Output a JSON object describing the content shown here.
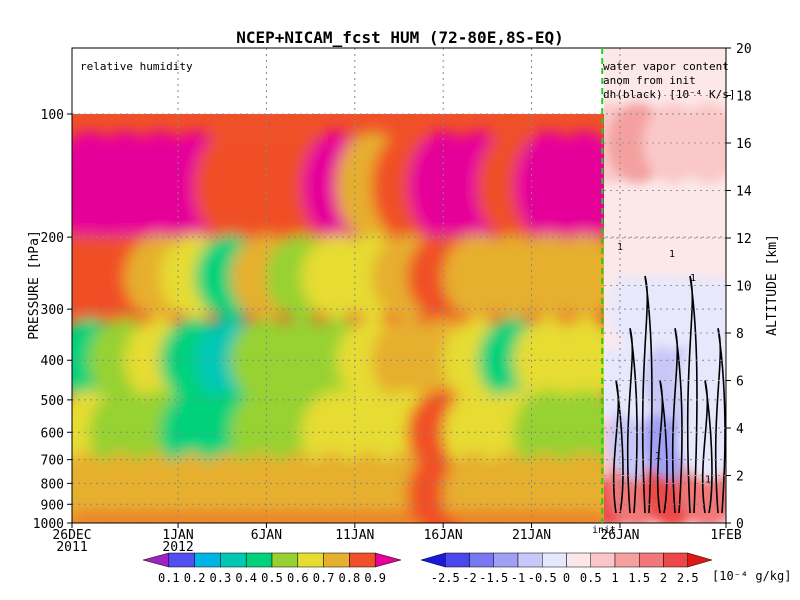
{
  "chart_data": [
    {
      "type": "heatmap",
      "title": "NCEP+NICAM_fcst HUM (72-80E,8S-EQ)",
      "panel_label": "relative humidity",
      "ylabel": "PRESSURE [hPa]",
      "ylabel_right": "ALTITUDE [km]",
      "y_scale": "log-pressure",
      "ylim": [
        1000,
        100
      ],
      "yticks": [
        100,
        200,
        300,
        400,
        500,
        600,
        700,
        800,
        900,
        1000
      ],
      "ylim_right": [
        0,
        20
      ],
      "yticks_right": [
        0,
        2,
        4,
        6,
        8,
        10,
        12,
        14,
        16,
        18,
        20
      ],
      "xlim": [
        "2011-12-26",
        "2012-02-01"
      ],
      "xticks": [
        {
          "date": "2011-12-26",
          "label": "26DEC"
        },
        {
          "date": "2012-01-01",
          "label": "1JAN"
        },
        {
          "date": "2012-01-06",
          "label": "6JAN"
        },
        {
          "date": "2012-01-11",
          "label": "11JAN"
        },
        {
          "date": "2012-01-16",
          "label": "16JAN"
        },
        {
          "date": "2012-01-21",
          "label": "21JAN"
        },
        {
          "date": "2012-01-26",
          "label": "26JAN"
        },
        {
          "date": "2012-02-01",
          "label": "1FEB"
        }
      ],
      "year_labels": [
        "2011",
        "2012"
      ],
      "init_marker": {
        "date": "2012-01-25",
        "label": "init"
      },
      "grid": true,
      "levels": [
        0.1,
        0.2,
        0.3,
        0.4,
        0.5,
        0.6,
        0.7,
        0.8,
        0.9
      ],
      "colors": [
        "#a020c0",
        "#5050f0",
        "#00b4e6",
        "#00c8b4",
        "#00d27c",
        "#96d232",
        "#e6dc32",
        "#e6af2d",
        "#f05028",
        "#e6009a"
      ],
      "colorbar_labels": [
        "0.1",
        "0.2",
        "0.3",
        "0.4",
        "0.5",
        "0.6",
        "0.7",
        "0.8",
        "0.9"
      ],
      "approx_series": {
        "pressure_levels": [
          150,
          250,
          400,
          600,
          850
        ],
        "points": [
          {
            "date": "2011-12-27",
            "rh": [
              0.9,
              0.85,
              0.45,
              0.6,
              0.75
            ]
          },
          {
            "date": "2011-12-29",
            "rh": [
              0.9,
              0.8,
              0.55,
              0.55,
              0.7
            ]
          },
          {
            "date": "2011-12-31",
            "rh": [
              0.9,
              0.75,
              0.6,
              0.55,
              0.7
            ]
          },
          {
            "date": "2012-01-02",
            "rh": [
              0.9,
              0.6,
              0.45,
              0.45,
              0.75
            ]
          },
          {
            "date": "2012-01-04",
            "rh": [
              0.85,
              0.4,
              0.35,
              0.4,
              0.7
            ]
          },
          {
            "date": "2012-01-06",
            "rh": [
              0.8,
              0.7,
              0.55,
              0.55,
              0.75
            ]
          },
          {
            "date": "2012-01-08",
            "rh": [
              0.85,
              0.55,
              0.5,
              0.5,
              0.7
            ]
          },
          {
            "date": "2012-01-10",
            "rh": [
              0.9,
              0.65,
              0.55,
              0.6,
              0.75
            ]
          },
          {
            "date": "2012-01-12",
            "rh": [
              0.75,
              0.65,
              0.65,
              0.65,
              0.75
            ]
          },
          {
            "date": "2012-01-14",
            "rh": [
              0.85,
              0.75,
              0.7,
              0.65,
              0.75
            ]
          },
          {
            "date": "2012-01-16",
            "rh": [
              0.9,
              0.8,
              0.75,
              0.85,
              0.8
            ]
          },
          {
            "date": "2012-01-18",
            "rh": [
              0.9,
              0.75,
              0.65,
              0.65,
              0.75
            ]
          },
          {
            "date": "2012-01-20",
            "rh": [
              0.85,
              0.7,
              0.45,
              0.6,
              0.75
            ]
          },
          {
            "date": "2012-01-22",
            "rh": [
              0.9,
              0.75,
              0.6,
              0.55,
              0.7
            ]
          },
          {
            "date": "2012-01-24",
            "rh": [
              0.9,
              0.7,
              0.65,
              0.55,
              0.75
            ]
          }
        ]
      }
    },
    {
      "type": "heatmap",
      "panel_label": [
        "water vapor content",
        "anom from init",
        "dh(black) [10⁻⁴ K/s]"
      ],
      "xlim": [
        "2012-01-25",
        "2012-02-01"
      ],
      "levels": [
        -2.5,
        -2,
        -1.5,
        -1,
        -0.5,
        0,
        0.5,
        1,
        1.5,
        2,
        2.5
      ],
      "colors": [
        "#1818e0",
        "#4848ec",
        "#7878f0",
        "#a0a0f4",
        "#c8c8f8",
        "#e8e8fc",
        "#fce8e8",
        "#fac8c8",
        "#f4a0a0",
        "#f07878",
        "#ec4848",
        "#e01818"
      ],
      "colorbar_labels": [
        "-2.5",
        "-2",
        "-1.5",
        "-1",
        "-0.5",
        "0",
        "0.5",
        "1",
        "1.5",
        "2",
        "2.5"
      ],
      "colorbar_unit": "[10⁻⁴ g/kg]",
      "contour_label": "1",
      "approx_series": {
        "altitude_km": [
          1.5,
          3.5,
          6,
          9,
          12,
          16
        ],
        "points": [
          {
            "date": "2012-01-25.5",
            "anom": [
              2,
              0.5,
              -0.5,
              0.3,
              0.3,
              0.5
            ]
          },
          {
            "date": "2012-01-27",
            "anom": [
              1.5,
              -1,
              -0.5,
              -0.5,
              0.3,
              1
            ]
          },
          {
            "date": "2012-01-29",
            "anom": [
              2,
              -1.5,
              -1,
              -0.5,
              0.3,
              0.5
            ]
          },
          {
            "date": "2012-01-31",
            "anom": [
              1.5,
              -0.5,
              -0.5,
              -0.5,
              0.3,
              0.5
            ]
          }
        ]
      }
    }
  ]
}
